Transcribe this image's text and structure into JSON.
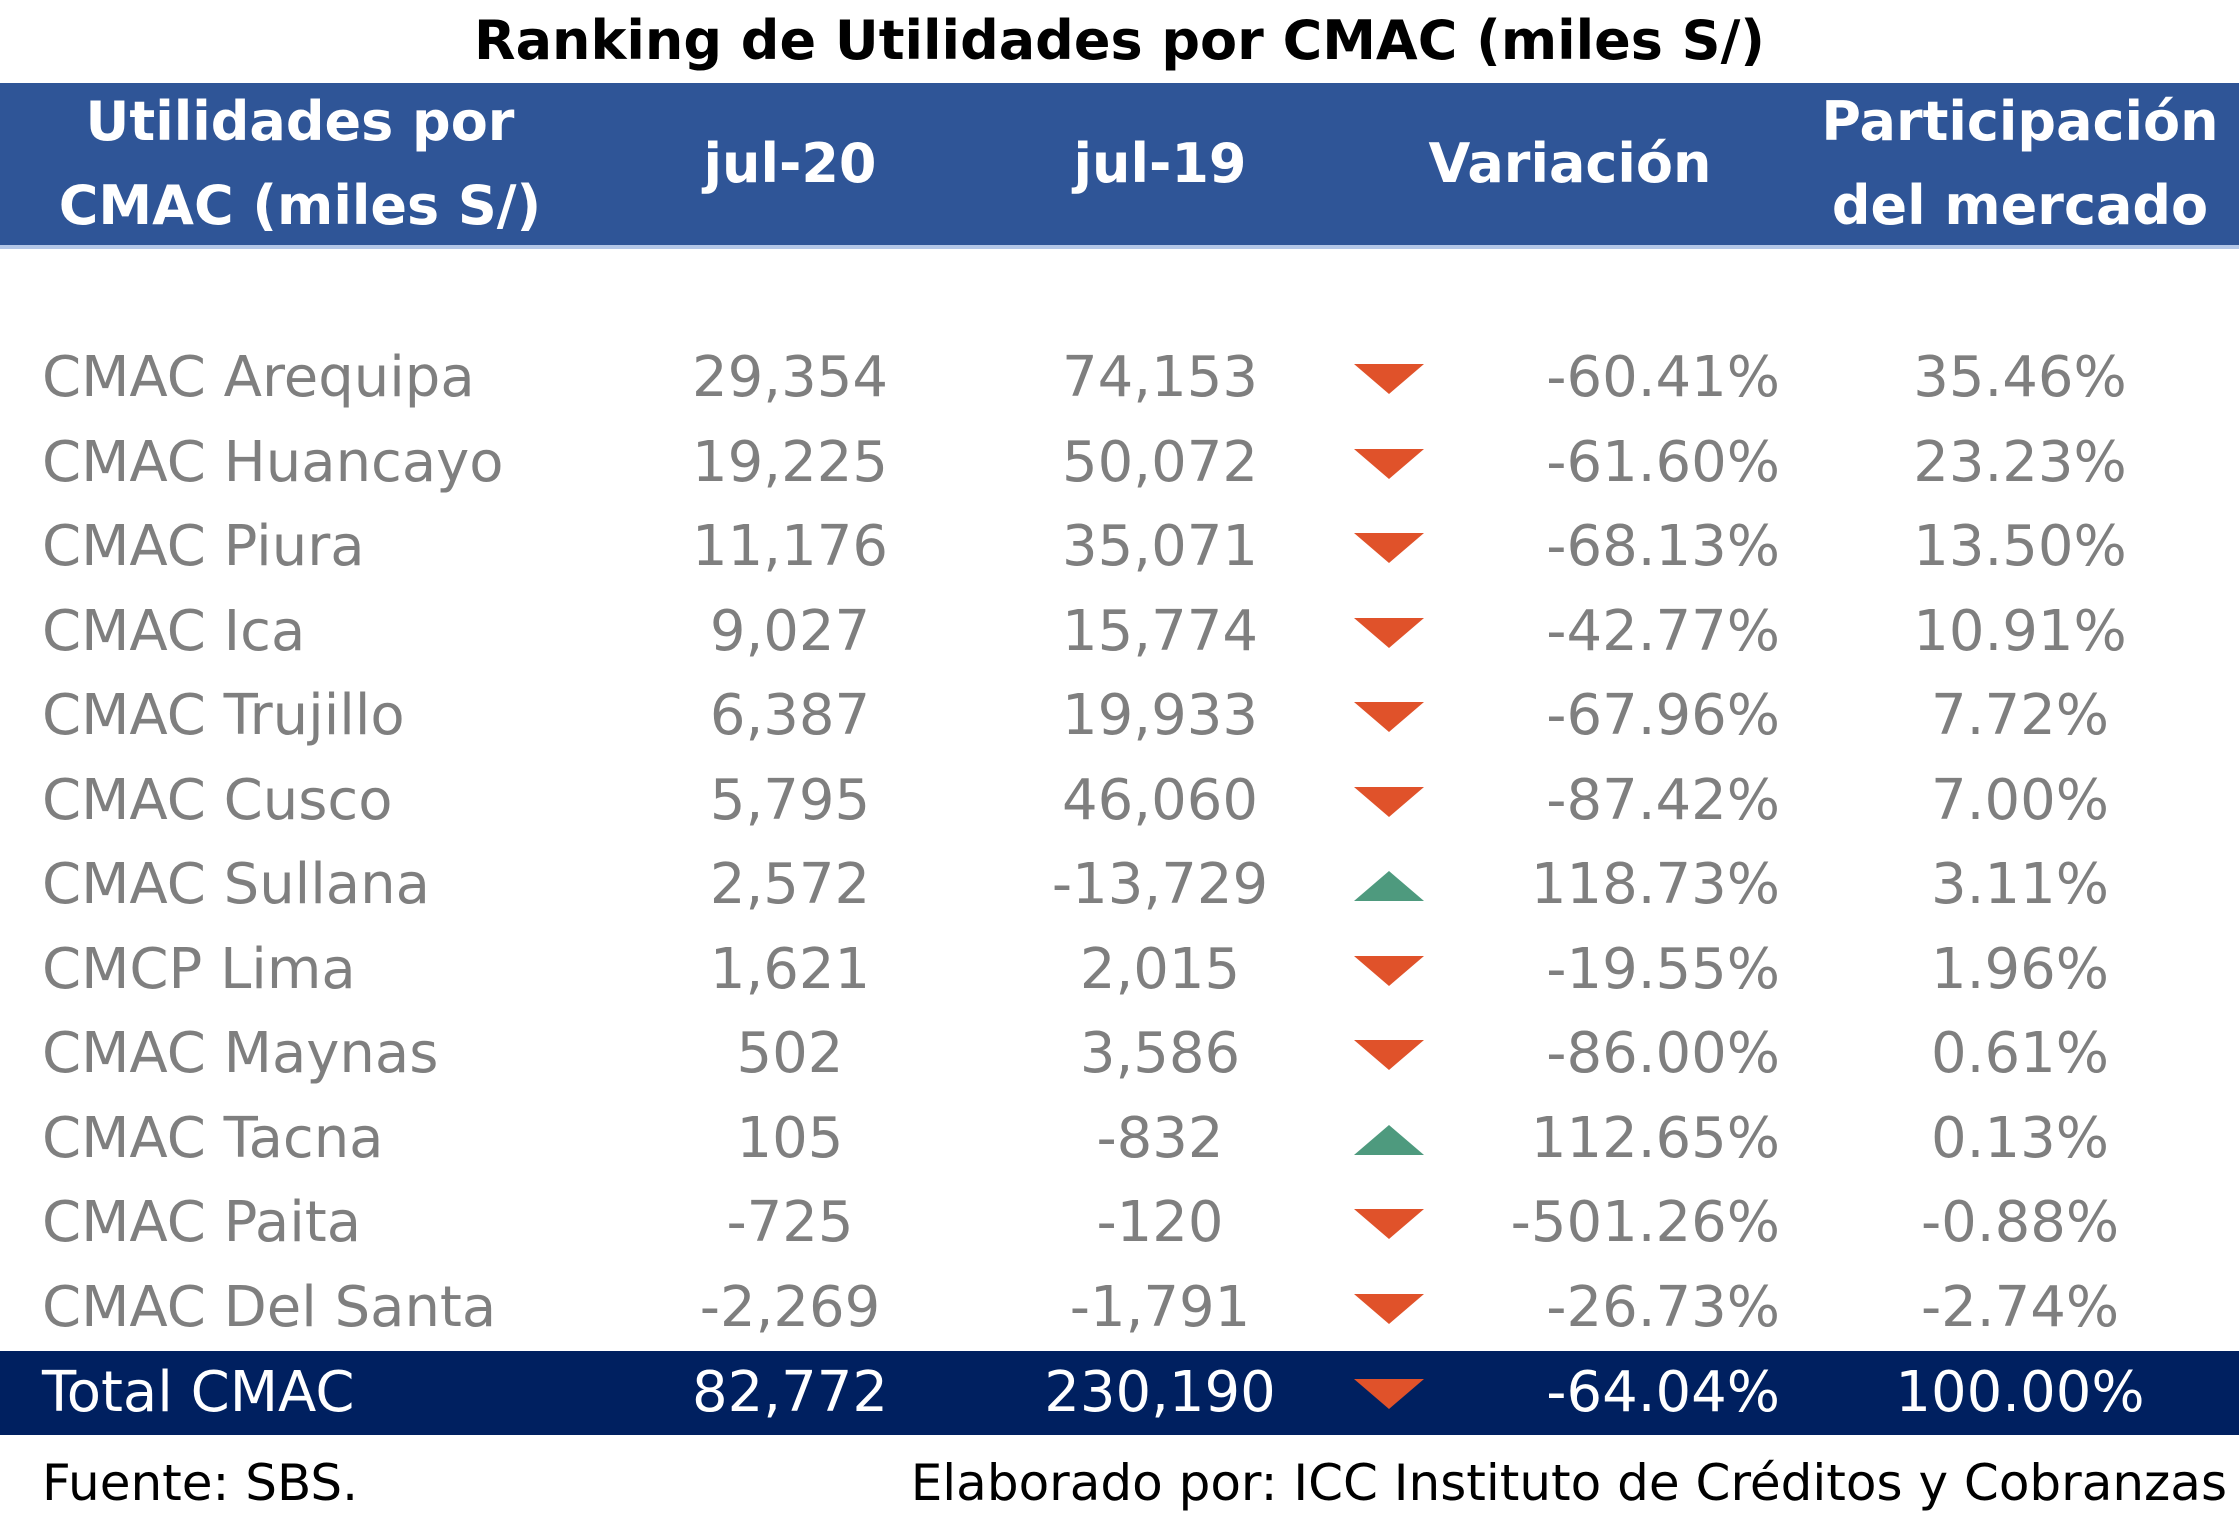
{
  "title": "Ranking de Utilidades por CMAC (miles S/)",
  "header": {
    "col1_line1": "Utilidades por",
    "col1_line2": "CMAC (miles S/)",
    "col2": "jul-20",
    "col3": "jul-19",
    "col4": "Variación",
    "col5_line1": "Participación",
    "col5_line2": "del mercado"
  },
  "rows": [
    {
      "name": "CMAC Arequipa",
      "jul20": "29,354",
      "jul19": "74,153",
      "trend": "down",
      "variation": "-60.41%",
      "share": "35.46%"
    },
    {
      "name": "CMAC Huancayo",
      "jul20": "19,225",
      "jul19": "50,072",
      "trend": "down",
      "variation": "-61.60%",
      "share": "23.23%"
    },
    {
      "name": "CMAC Piura",
      "jul20": "11,176",
      "jul19": "35,071",
      "trend": "down",
      "variation": "-68.13%",
      "share": "13.50%"
    },
    {
      "name": "CMAC Ica",
      "jul20": "9,027",
      "jul19": "15,774",
      "trend": "down",
      "variation": "-42.77%",
      "share": "10.91%"
    },
    {
      "name": "CMAC Trujillo",
      "jul20": "6,387",
      "jul19": "19,933",
      "trend": "down",
      "variation": "-67.96%",
      "share": "7.72%"
    },
    {
      "name": "CMAC Cusco",
      "jul20": "5,795",
      "jul19": "46,060",
      "trend": "down",
      "variation": "-87.42%",
      "share": "7.00%"
    },
    {
      "name": "CMAC Sullana",
      "jul20": "2,572",
      "jul19": "-13,729",
      "trend": "up",
      "variation": "118.73%",
      "share": "3.11%"
    },
    {
      "name": "CMCP Lima",
      "jul20": "1,621",
      "jul19": "2,015",
      "trend": "down",
      "variation": "-19.55%",
      "share": "1.96%"
    },
    {
      "name": "CMAC Maynas",
      "jul20": "502",
      "jul19": "3,586",
      "trend": "down",
      "variation": "-86.00%",
      "share": "0.61%"
    },
    {
      "name": "CMAC Tacna",
      "jul20": "105",
      "jul19": "-832",
      "trend": "up",
      "variation": "112.65%",
      "share": "0.13%"
    },
    {
      "name": "CMAC Paita",
      "jul20": "-725",
      "jul19": "-120",
      "trend": "down",
      "variation": "-501.26%",
      "share": "-0.88%"
    },
    {
      "name": "CMAC Del Santa",
      "jul20": "-2,269",
      "jul19": "-1,791",
      "trend": "down",
      "variation": "-26.73%",
      "share": "-2.74%"
    }
  ],
  "total": {
    "name": "Total CMAC",
    "jul20": "82,772",
    "jul19": "230,190",
    "trend": "down",
    "variation": "-64.04%",
    "share": "100.00%"
  },
  "footer": {
    "source": "Fuente: SBS.",
    "credit": "Elaborado por: ICC Instituto de Créditos y Cobranzas"
  },
  "colors": {
    "header_bg": "#2F5597",
    "total_bg": "#002060",
    "down_arrow": "#E0522A",
    "up_arrow": "#4E9A7E"
  },
  "icons": {
    "down": "down-triangle-icon",
    "up": "up-triangle-icon"
  }
}
